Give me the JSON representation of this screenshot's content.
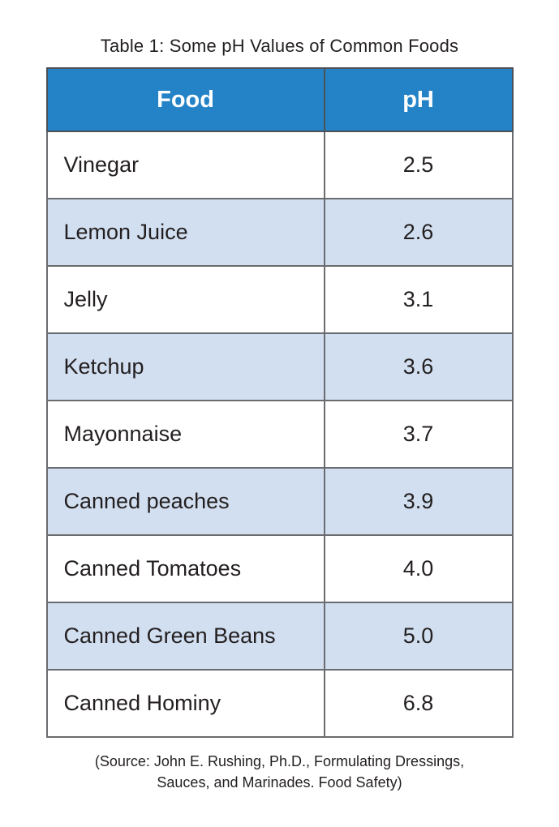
{
  "title": "Table 1: Some pH Values of Common Foods",
  "table": {
    "columns": {
      "food": "Food",
      "ph": "pH"
    },
    "rows": [
      {
        "food": "Vinegar",
        "ph": "2.5"
      },
      {
        "food": "Lemon Juice",
        "ph": "2.6"
      },
      {
        "food": "Jelly",
        "ph": "3.1"
      },
      {
        "food": "Ketchup",
        "ph": "3.6"
      },
      {
        "food": "Mayonnaise",
        "ph": "3.7"
      },
      {
        "food": "Canned peaches",
        "ph": "3.9"
      },
      {
        "food": "Canned Tomatoes",
        "ph": "4.0"
      },
      {
        "food": "Canned Green Beans",
        "ph": "5.0"
      },
      {
        "food": "Canned Hominy",
        "ph": "6.8"
      }
    ]
  },
  "source_lines": [
    "(Source: John E. Rushing, Ph.D., Formulating Dressings,",
    "Sauces, and Marinades. Food Safety)"
  ],
  "colors": {
    "header_bg": "#2483c6",
    "header_text": "#ffffff",
    "row_alt_bg": "#d2dff0",
    "row_bg": "#ffffff",
    "text": "#231f20",
    "border": "#6a6b6e"
  }
}
